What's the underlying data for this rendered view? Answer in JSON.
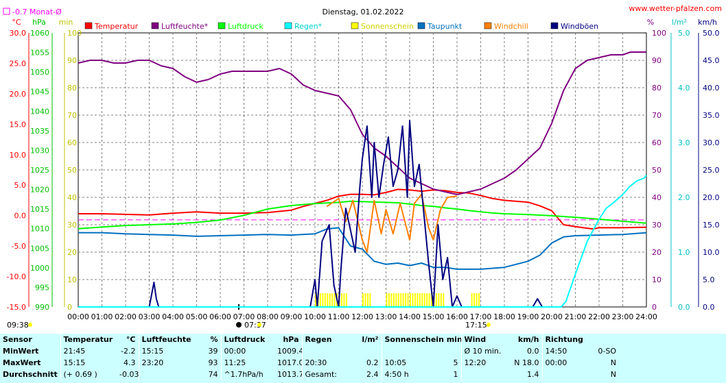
{
  "chart_data": {
    "type": "line",
    "title": "Dienstag, 01.02.2022",
    "source": "www.wetter-pfalzen.com",
    "monthly_avg_label": "-0.7 Monat-Ø",
    "axis_units": {
      "temp": "°C",
      "pressure": "hPa",
      "minutes": "min",
      "percent": "%",
      "rain": "l/m²",
      "wind": "km/h"
    },
    "temp_ticks": [
      "30.0",
      "25.0",
      "20.0",
      "15.0",
      "10.0",
      "5.0",
      "0.0",
      "-5.0",
      "-10.0",
      "-15.0"
    ],
    "pressure_ticks": [
      "1060",
      "1055",
      "1050",
      "1045",
      "1040",
      "1035",
      "1030",
      "1025",
      "1020",
      "1015",
      "1010",
      "1005",
      "1000",
      "995",
      "990"
    ],
    "minute_ticks": [
      "100",
      "90",
      "80",
      "70",
      "60",
      "50",
      "40",
      "30",
      "20",
      "10",
      "0"
    ],
    "percent_ticks": [
      "100",
      "90",
      "80",
      "70",
      "60",
      "50",
      "40",
      "30",
      "20",
      "10",
      "0"
    ],
    "rain_ticks": [
      "5.0",
      "4.0",
      "3.0",
      "2.0",
      "1.0",
      "0.0"
    ],
    "wind_ticks": [
      "50.0",
      "45.0",
      "40.0",
      "35.0",
      "30.0",
      "25.0",
      "20.0",
      "15.0",
      "10.0",
      "5.0",
      "0.0"
    ],
    "x_ticks": [
      "00:00",
      "01:00",
      "02:00",
      "03:00",
      "04:00",
      "05:00",
      "06:00",
      "07:00",
      "08:00",
      "09:00",
      "10:00",
      "11:00",
      "12:00",
      "13:00",
      "14:00",
      "15:00",
      "16:00",
      "17:00",
      "18:00",
      "19:00",
      "20:00",
      "21:00",
      "22:00",
      "23:00",
      "24:00"
    ],
    "sunrise": "09:38",
    "sunset": "17:15",
    "moon_label": "07:37",
    "temp_range": [
      -15,
      30
    ],
    "pressure_range": [
      990,
      1060
    ],
    "percent_range": [
      0,
      100
    ],
    "minutes_range": [
      0,
      100
    ],
    "rain_range": [
      0,
      5
    ],
    "wind_range": [
      0,
      50
    ],
    "monthly_avg": -0.7,
    "legend": [
      {
        "name": "Temperatur",
        "color": "#ff0000"
      },
      {
        "name": "Luftfeuchte*",
        "color": "#800080"
      },
      {
        "name": "Luftdruck",
        "color": "#00ff00"
      },
      {
        "name": "Regen*",
        "color": "#00ffff"
      },
      {
        "name": "Sonnenschein",
        "color": "#ffff00"
      },
      {
        "name": "Taupunkt",
        "color": "#0070c0"
      },
      {
        "name": "Windchill",
        "color": "#ff8000"
      },
      {
        "name": "Windböen",
        "color": "#000080"
      }
    ],
    "series": [
      {
        "key": "temperature",
        "axis": "temp",
        "color": "#ff0000",
        "x": [
          0,
          1,
          2,
          3,
          4,
          5,
          6,
          7,
          8,
          9,
          9.5,
          10,
          10.5,
          11,
          11.5,
          12,
          12.5,
          13,
          13.5,
          14,
          14.5,
          15,
          15.5,
          16,
          16.5,
          17,
          17.5,
          18,
          19,
          19.5,
          20,
          20.5,
          21,
          21.75,
          22,
          23,
          24
        ],
        "y": [
          0.3,
          0.3,
          0.2,
          0.1,
          0.4,
          0.6,
          0.4,
          0.4,
          0.5,
          0.9,
          1.5,
          2.0,
          2.5,
          3.2,
          3.5,
          3.5,
          3.4,
          3.8,
          4.3,
          4.2,
          4.0,
          4.2,
          4.1,
          3.8,
          3.7,
          3.3,
          2.8,
          2.5,
          2.2,
          1.6,
          0.8,
          -1.5,
          -1.8,
          -2.2,
          -2.0,
          -2.0,
          -1.9
        ]
      },
      {
        "key": "humidity",
        "axis": "percent",
        "color": "#800080",
        "x": [
          0,
          0.5,
          1,
          1.5,
          2,
          2.5,
          3,
          3.5,
          4,
          4.5,
          5,
          5.5,
          6,
          6.5,
          7,
          7.5,
          8,
          8.5,
          9,
          9.5,
          10,
          10.5,
          11,
          11.5,
          12,
          12.5,
          13,
          13.5,
          14,
          14.5,
          15,
          15.5,
          16,
          16.5,
          17,
          17.5,
          18,
          18.5,
          19,
          19.5,
          20,
          20.5,
          21,
          21.5,
          22,
          22.5,
          23,
          23.33,
          24
        ],
        "y": [
          89,
          90,
          90,
          89,
          89,
          90,
          90,
          88,
          87,
          84,
          82,
          83,
          85,
          86,
          86,
          86,
          86,
          87,
          85,
          81,
          79,
          78,
          77,
          72,
          63,
          58,
          55,
          51,
          47,
          45,
          43,
          42,
          41,
          42,
          43,
          45,
          47,
          50,
          54,
          58,
          67,
          79,
          87,
          90,
          91,
          92,
          92,
          93,
          93
        ]
      },
      {
        "key": "pressure",
        "axis": "pressure",
        "color": "#00ff00",
        "x": [
          0,
          1,
          2,
          3,
          4,
          5,
          6,
          7,
          8,
          9,
          10,
          11,
          11.5,
          12,
          12.5,
          13,
          13.5,
          14,
          14.5,
          15,
          15.5,
          16,
          16.5,
          17,
          17.5,
          18,
          19,
          20,
          21,
          22,
          23,
          24
        ],
        "y": [
          1010.0,
          1010.4,
          1010.8,
          1011.0,
          1011.2,
          1011.6,
          1012.2,
          1013.4,
          1015.0,
          1015.9,
          1016.4,
          1016.7,
          1017.0,
          1016.9,
          1016.8,
          1016.7,
          1016.6,
          1016.3,
          1015.9,
          1015.7,
          1015.3,
          1015.0,
          1014.6,
          1014.3,
          1014.0,
          1013.8,
          1013.6,
          1013.3,
          1012.9,
          1012.4,
          1011.9,
          1011.4
        ]
      },
      {
        "key": "dewpoint",
        "axis": "temp",
        "color": "#0070c0",
        "x": [
          0,
          1,
          2,
          3,
          4,
          5,
          6,
          7,
          8,
          9,
          10,
          10.5,
          11,
          11.5,
          12,
          12.5,
          13,
          13.5,
          14,
          14.5,
          15,
          15.5,
          16,
          17,
          18,
          19,
          19.5,
          20,
          20.5,
          21,
          22,
          23,
          24
        ],
        "y": [
          -2.8,
          -2.8,
          -3.0,
          -3.1,
          -3.2,
          -3.4,
          -3.3,
          -3.2,
          -3.1,
          -3.2,
          -3.0,
          -2.2,
          -2.0,
          -5.0,
          -5.5,
          -7.5,
          -8.0,
          -7.8,
          -8.2,
          -7.8,
          -8.5,
          -8.5,
          -8.8,
          -8.8,
          -8.5,
          -7.5,
          -6.5,
          -4.5,
          -3.5,
          -3.3,
          -3.2,
          -3.1,
          -2.8
        ]
      },
      {
        "key": "windchill",
        "axis": "temp",
        "color": "#ff8000",
        "x": [
          10.5,
          11,
          11.3,
          11.6,
          12,
          12.2,
          12.5,
          12.8,
          13,
          13.3,
          13.6,
          14,
          14.2,
          14.5,
          14.8,
          15,
          15.3,
          15.6,
          16
        ],
        "y": [
          1.5,
          2.8,
          -1.0,
          2.5,
          -4.0,
          -6.0,
          2.5,
          -3.0,
          1.0,
          -3.0,
          2.0,
          -4.0,
          2.0,
          3.5,
          -2.0,
          -4.0,
          1.0,
          3.0,
          3.2
        ]
      },
      {
        "key": "gusts",
        "axis": "wind",
        "color": "#000080",
        "x": [
          3,
          3.2,
          3.3,
          3.4,
          3.6,
          9.8,
          10,
          10.1,
          10.3,
          10.6,
          10.8,
          11,
          11.1,
          11.3,
          11.5,
          11.7,
          11.9,
          12,
          12.2,
          12.4,
          12.5,
          12.7,
          12.9,
          13.1,
          13.3,
          13.5,
          13.7,
          13.9,
          14,
          14.2,
          14.4,
          14.6,
          14.8,
          15,
          15.2,
          15.4,
          15.6,
          15.8,
          16,
          16.2,
          19.2,
          19.4,
          19.6
        ],
        "y": [
          0,
          4.5,
          1.5,
          0,
          0,
          0,
          5,
          0,
          12,
          15,
          4,
          0,
          7,
          18,
          14,
          10,
          22,
          27,
          33,
          20,
          30,
          20,
          26,
          31,
          22,
          25,
          33,
          20,
          34,
          22,
          26,
          17,
          8,
          0,
          15,
          5,
          9,
          0,
          2,
          0,
          0,
          1.5,
          0
        ]
      },
      {
        "key": "rain",
        "axis": "rain",
        "color": "#00ffff",
        "x": [
          0,
          20.4,
          20.6,
          21,
          21.5,
          22,
          22.3,
          22.6,
          23,
          23.3,
          23.6,
          23.9,
          24
        ],
        "y": [
          0,
          0,
          0.1,
          0.6,
          1.2,
          1.6,
          1.8,
          1.9,
          2.05,
          2.2,
          2.3,
          2.35,
          2.4
        ]
      }
    ],
    "sunshine_minutes": [
      [
        10.0,
        11.3
      ],
      [
        12.0,
        12.3
      ],
      [
        13.0,
        15.4
      ],
      [
        16.6,
        17.0
      ]
    ]
  },
  "stats": {
    "header": [
      "Sensor",
      "Temperatur",
      "°C",
      "Luftfeuchte",
      "%",
      "Luftdruck",
      "hPa",
      "Regen",
      "l/m²",
      "Sonnenschein min",
      "Wind",
      "km/h",
      "Richtung"
    ],
    "rows": [
      [
        "MinWert",
        "21:45",
        "-2.2",
        "15:15",
        "39",
        "00:00",
        "1009.4",
        "",
        "",
        "",
        "Ø 10 min.",
        "0.0",
        "14:50",
        "0-SO"
      ],
      [
        "MaxWert",
        "15:15",
        "4.3",
        "23:20",
        "93",
        "11:25",
        "1017.0",
        "20:30",
        "0.2",
        "10:05",
        "5",
        "12:20",
        "N 18.0",
        "00:00",
        "N"
      ],
      [
        "Durchschnitt",
        "(+ 0.69 )",
        "-0.03",
        "",
        "74",
        "^1.7hPa/h",
        "1013.7",
        "Gesamt:",
        "2.4",
        "4:50 h",
        "1",
        "",
        "1.4",
        "",
        "N"
      ]
    ]
  }
}
